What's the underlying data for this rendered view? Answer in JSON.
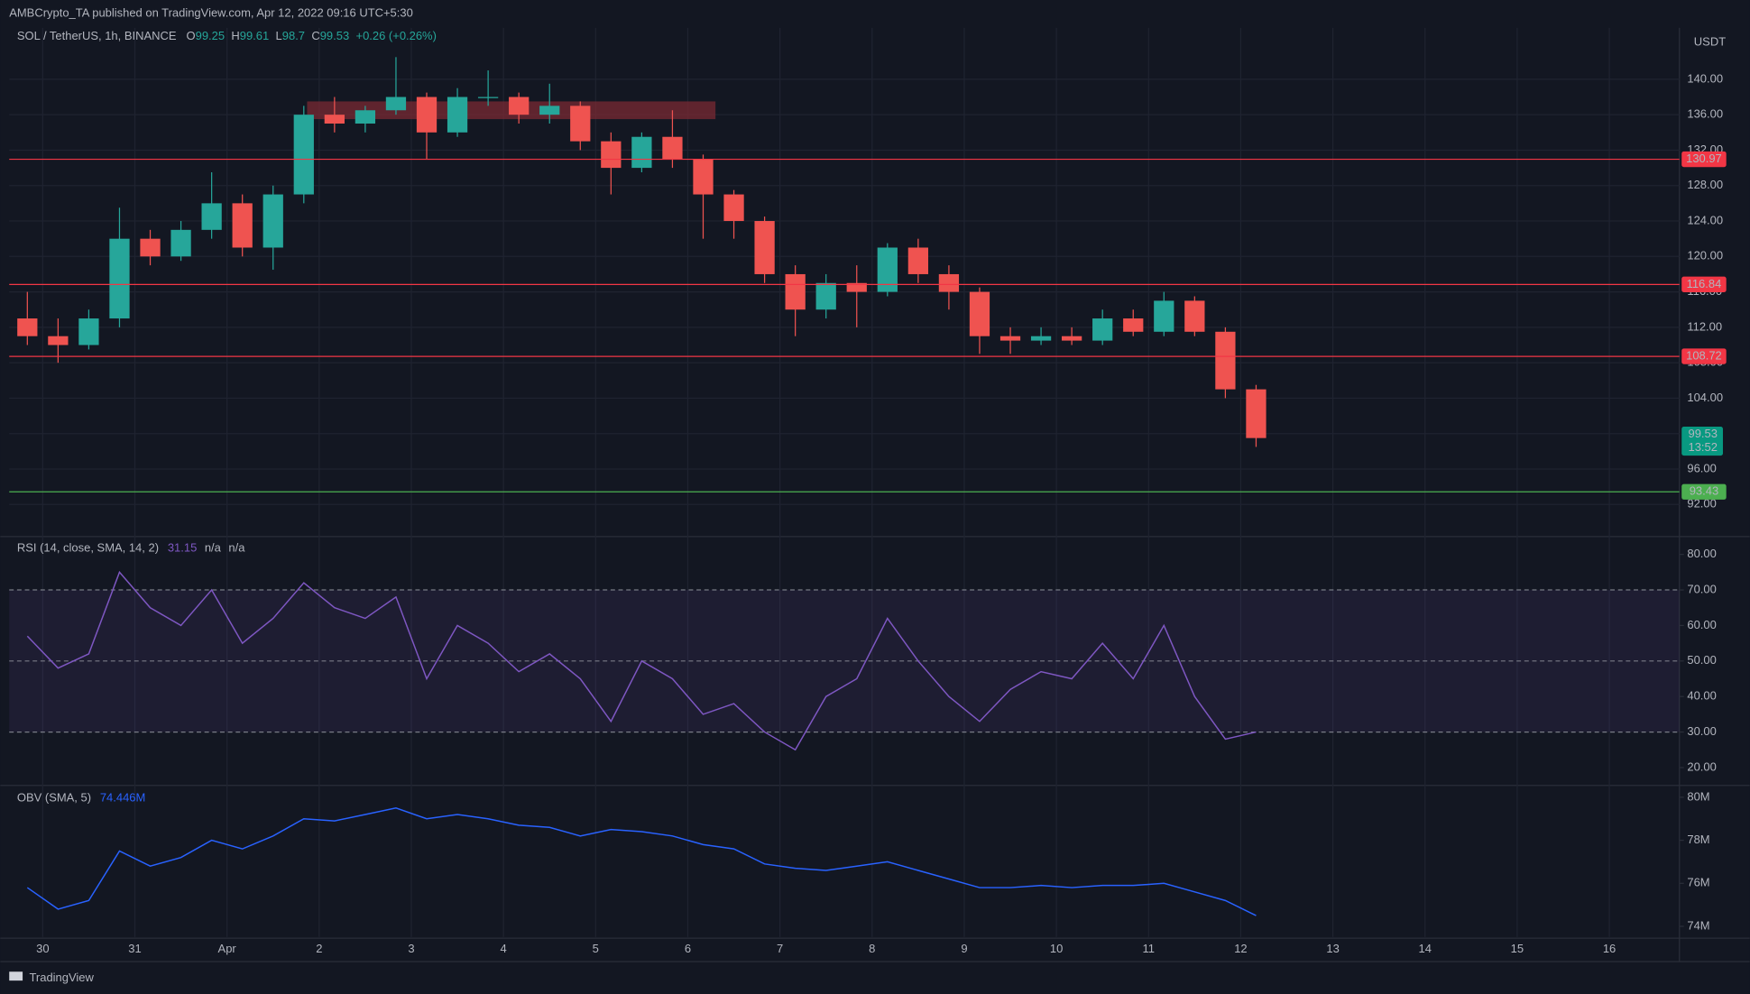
{
  "header": {
    "publisher": "AMBCrypto_TA published on TradingView.com, Apr 12, 2022 09:16 UTC+5:30"
  },
  "footer": {
    "brand": "TradingView"
  },
  "chart_data": [
    {
      "type": "candlestick",
      "title": "SOL / TetherUS, 1h, BINANCE",
      "legend_letters": [
        "O",
        "H",
        "L",
        "C"
      ],
      "legend_values": [
        99.25,
        99.61,
        98.7,
        99.53
      ],
      "change": "+0.26 (+0.26%)",
      "currency": "USDT",
      "open": [
        113,
        111,
        110,
        113,
        122,
        120,
        123,
        126,
        121,
        127,
        136,
        135,
        136.5,
        138,
        134,
        138,
        138,
        136,
        137,
        133,
        130,
        133.5,
        131,
        127,
        124,
        118,
        114,
        117,
        116,
        121,
        118,
        116,
        111,
        110.5,
        111,
        110.5,
        113,
        111.5,
        115,
        111.5,
        105
      ],
      "high": [
        116,
        113,
        114,
        125.5,
        123,
        124,
        129.5,
        127,
        128,
        137,
        138,
        137,
        142.5,
        138.5,
        139,
        141,
        138.5,
        139.5,
        137.5,
        134,
        134,
        136.5,
        131.5,
        127.5,
        124.5,
        119,
        118,
        119,
        121.5,
        122,
        119,
        116.5,
        112,
        112,
        112,
        114,
        114,
        116,
        115.5,
        112,
        105.5
      ],
      "low": [
        110,
        108,
        109.5,
        112,
        119,
        119.5,
        122,
        120,
        118.5,
        126,
        134,
        134,
        136,
        131,
        133.5,
        137,
        135,
        135,
        132,
        127,
        129.5,
        130,
        122,
        122,
        117,
        111,
        113,
        112,
        115.5,
        117,
        114,
        109,
        109,
        110,
        110,
        110,
        111,
        111,
        111,
        104,
        98.5
      ],
      "close": [
        111,
        110,
        113,
        122,
        120,
        123,
        126,
        121,
        127,
        136,
        135,
        136.5,
        138,
        134,
        138,
        138,
        136,
        137,
        133,
        130,
        133.5,
        131,
        127,
        124,
        118,
        114,
        117,
        116,
        121,
        118,
        116,
        111,
        110.5,
        111,
        110.5,
        113,
        111.5,
        115,
        111.5,
        105,
        99.5
      ],
      "up_color": "#26a69a",
      "down_color": "#ef5350",
      "ylim": [
        88.5,
        145.8
      ],
      "yticks": [
        {
          "value": 92,
          "label": "92.00"
        },
        {
          "value": 96,
          "label": "96.00"
        },
        {
          "value": 100,
          "label": "100.00"
        },
        {
          "value": 104,
          "label": "104.00"
        },
        {
          "value": 108,
          "label": "108.00"
        },
        {
          "value": 112,
          "label": "112.00"
        },
        {
          "value": 116,
          "label": "116.00"
        },
        {
          "value": 120,
          "label": "120.00"
        },
        {
          "value": 124,
          "label": "124.00"
        },
        {
          "value": 128,
          "label": "128.00"
        },
        {
          "value": 132,
          "label": "132.00"
        },
        {
          "value": 136,
          "label": "136.00"
        },
        {
          "value": 140,
          "label": "140.00"
        }
      ],
      "levels": [
        {
          "value": 130.97,
          "color": "#f23645"
        },
        {
          "value": 116.84,
          "color": "#f23645"
        },
        {
          "value": 108.72,
          "color": "#f23645"
        },
        {
          "value": 93.43,
          "color": "#4caf50"
        }
      ],
      "zone": {
        "low": 135.5,
        "high": 137.5,
        "color": "#7a2a33"
      },
      "last_price": 99.53,
      "countdown": "13:52",
      "last_color": "#089981",
      "xtick_labels": [
        "30",
        "31",
        "Apr",
        "2",
        "3",
        "4",
        "5",
        "6",
        "7",
        "8",
        "9",
        "10",
        "11",
        "12",
        "13",
        "14",
        "15",
        "16"
      ]
    },
    {
      "type": "line",
      "title": "RSI (14, close, SMA, 14, 2)",
      "last": 31.15,
      "extra": [
        "n/a",
        "n/a"
      ],
      "color": "#7e57c2",
      "values": [
        57,
        48,
        52,
        75,
        65,
        60,
        70,
        55,
        62,
        72,
        65,
        62,
        68,
        45,
        60,
        55,
        47,
        52,
        45,
        33,
        50,
        45,
        35,
        38,
        30,
        25,
        40,
        45,
        62,
        50,
        40,
        33,
        42,
        47,
        45,
        55,
        45,
        60,
        40,
        28,
        30
      ],
      "ylim": [
        15.3,
        84.7
      ],
      "yticks": [
        {
          "value": 20,
          "label": "20.00"
        },
        {
          "value": 30,
          "label": "30.00"
        },
        {
          "value": 40,
          "label": "40.00"
        },
        {
          "value": 50,
          "label": "50.00"
        },
        {
          "value": 60,
          "label": "60.00"
        },
        {
          "value": 70,
          "label": "70.00"
        },
        {
          "value": 80,
          "label": "80.00"
        }
      ],
      "bands": [
        30,
        50,
        70
      ]
    },
    {
      "type": "line",
      "title": "OBV (SMA, 5)",
      "last": 74.446,
      "value_labels": [
        "74.446M"
      ],
      "color": "#2962ff",
      "values": [
        75.8,
        74.8,
        75.2,
        77.5,
        76.8,
        77.2,
        78.0,
        77.6,
        78.2,
        79.0,
        78.9,
        79.2,
        79.5,
        79.0,
        79.2,
        79.0,
        78.7,
        78.6,
        78.2,
        78.5,
        78.4,
        78.2,
        77.8,
        77.6,
        76.9,
        76.7,
        76.6,
        76.8,
        77.0,
        76.6,
        76.2,
        75.8,
        75.8,
        75.9,
        75.8,
        75.9,
        75.9,
        76.0,
        75.6,
        75.2,
        74.5
      ],
      "ylim": [
        73.5,
        80.5
      ],
      "yticks": [
        {
          "value": 74,
          "label": "74M"
        },
        {
          "value": 76,
          "label": "76M"
        },
        {
          "value": 78,
          "label": "78M"
        },
        {
          "value": 80,
          "label": "80M"
        }
      ]
    }
  ]
}
